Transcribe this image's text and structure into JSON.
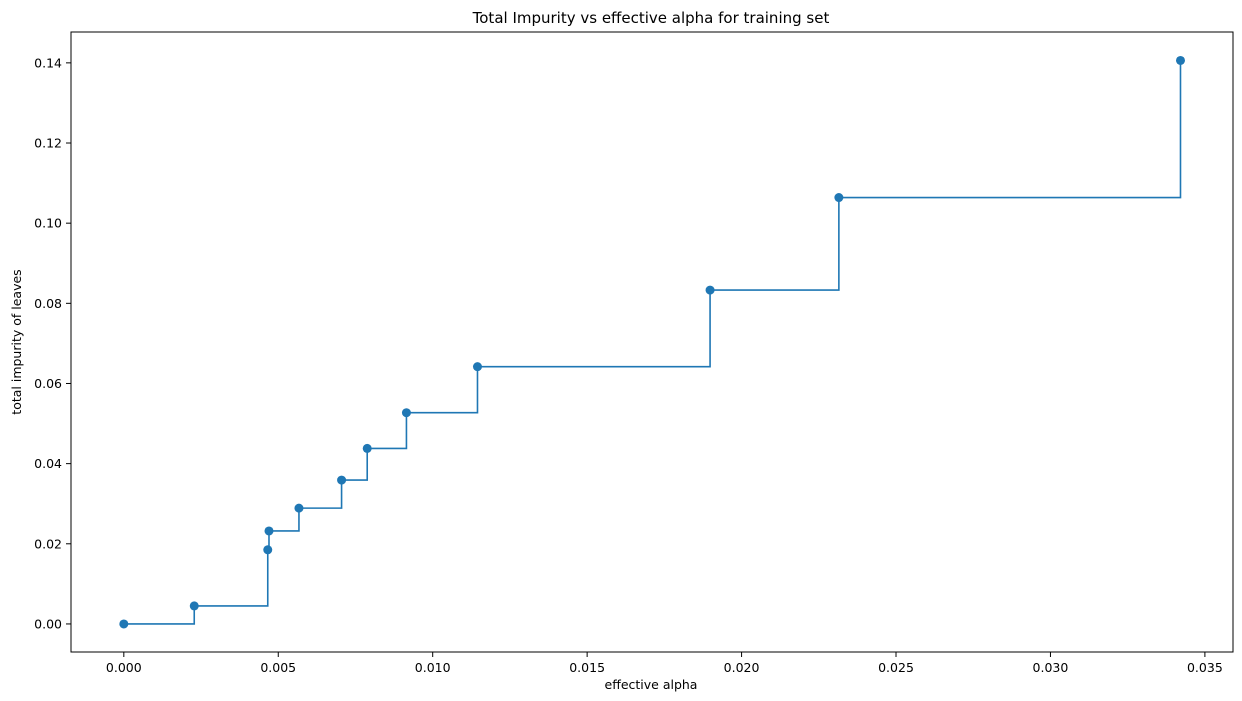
{
  "chart_data": {
    "type": "line",
    "drawstyle": "steps-post",
    "marker": "circle",
    "color": "#1f77b4",
    "title": "Total Impurity vs effective alpha for training set",
    "xlabel": "effective alpha",
    "ylabel": "total impurity of leaves",
    "xlim": [
      -0.00171,
      0.03591
    ],
    "ylim": [
      -0.007,
      0.1477
    ],
    "grid": false,
    "x_ticks": [
      0.0,
      0.005,
      0.01,
      0.015,
      0.02,
      0.025,
      0.03,
      0.035
    ],
    "x_tick_labels": [
      "0.000",
      "0.005",
      "0.010",
      "0.015",
      "0.020",
      "0.025",
      "0.030",
      "0.035"
    ],
    "y_ticks": [
      0.0,
      0.02,
      0.04,
      0.06,
      0.08,
      0.1,
      0.12,
      0.14
    ],
    "y_tick_labels": [
      "0.00",
      "0.02",
      "0.04",
      "0.06",
      "0.08",
      "0.10",
      "0.12",
      "0.14"
    ],
    "x": [
      0.0,
      0.00228,
      0.00466,
      0.0047,
      0.00567,
      0.00705,
      0.00788,
      0.00915,
      0.01145,
      0.01898,
      0.02315,
      0.03421
    ],
    "y": [
      0.0,
      0.0045,
      0.0185,
      0.0232,
      0.0289,
      0.0359,
      0.0438,
      0.0527,
      0.0642,
      0.0833,
      0.1064,
      0.1406
    ]
  }
}
